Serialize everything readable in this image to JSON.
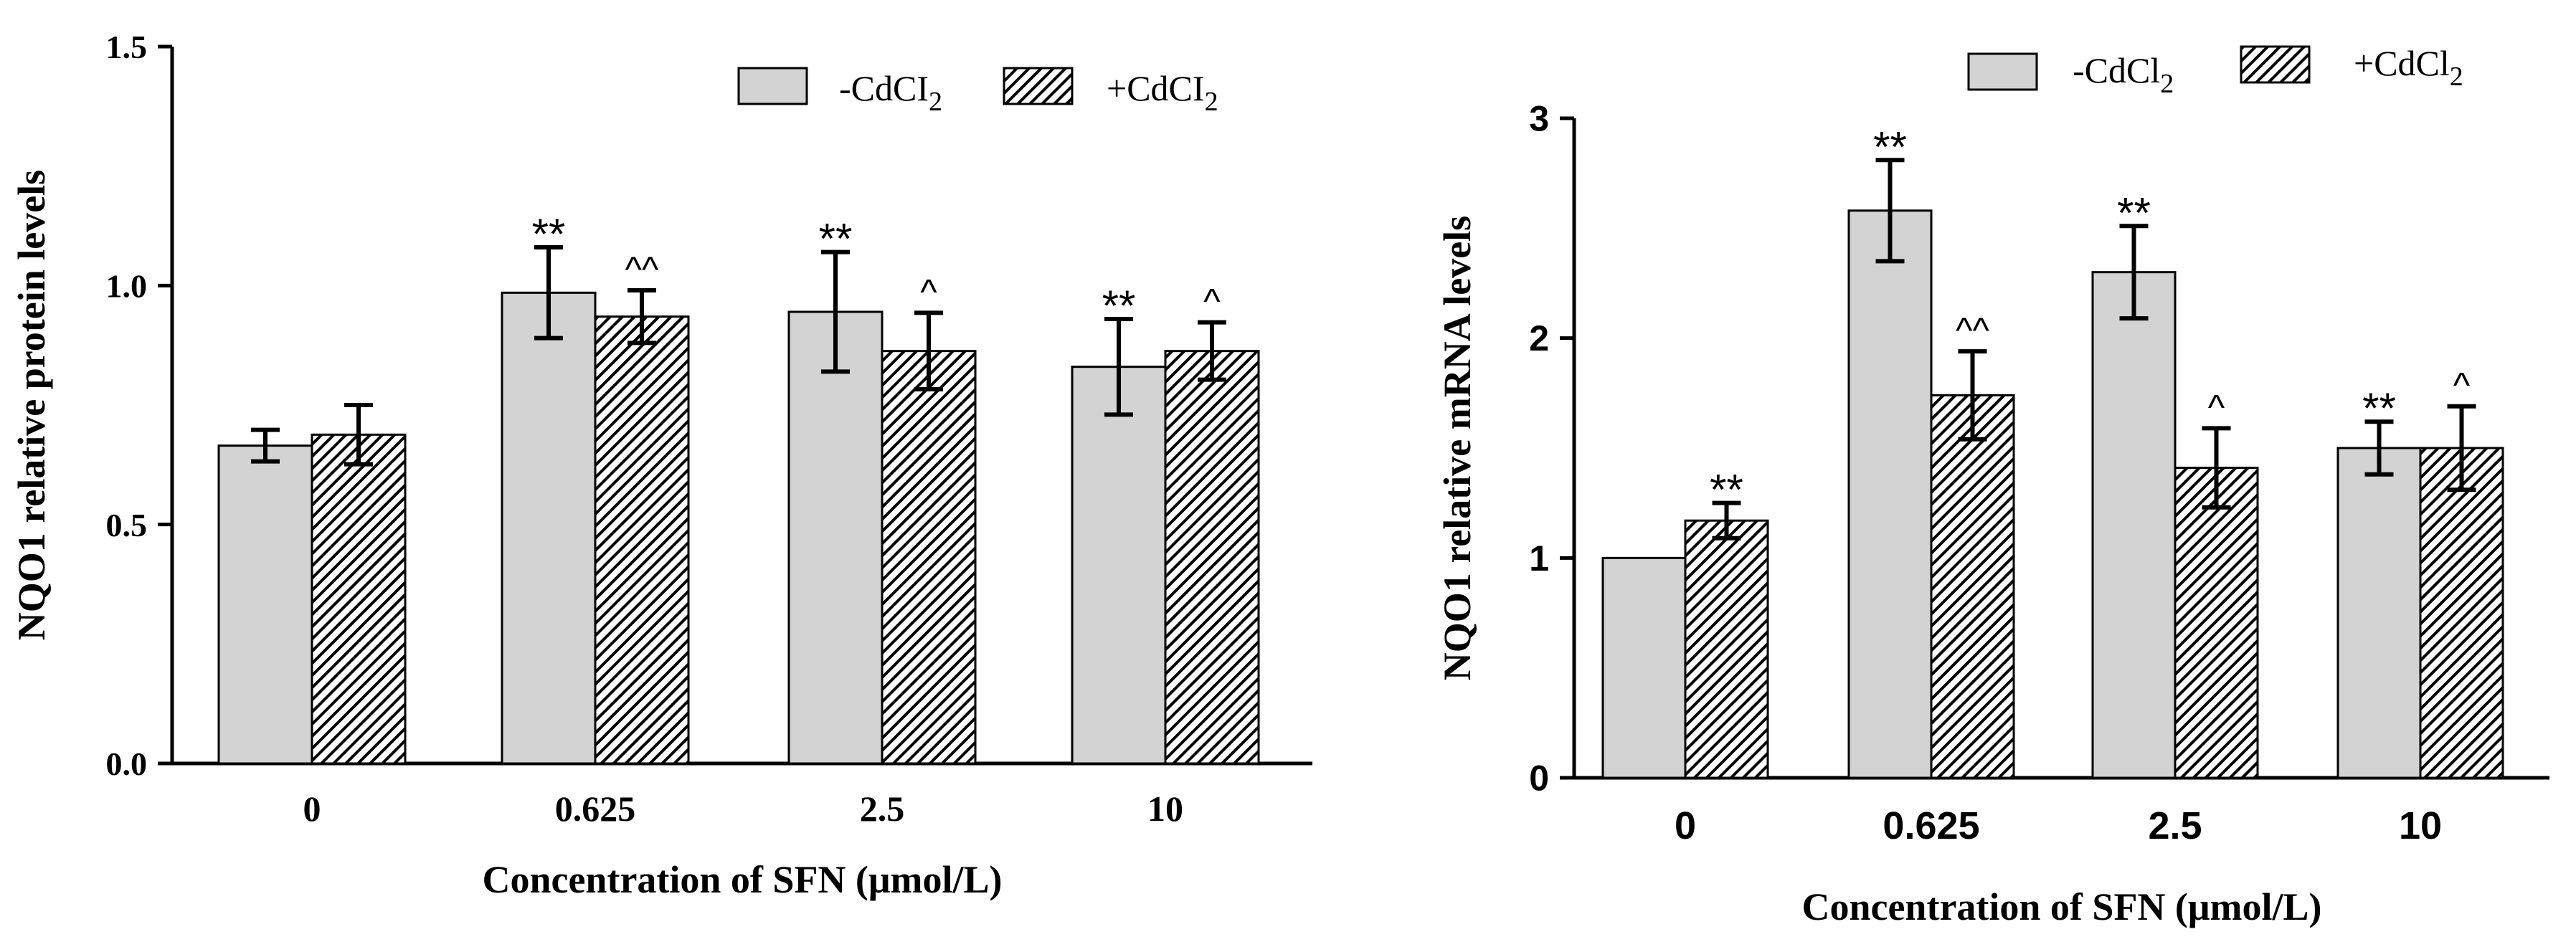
{
  "chart_data": [
    {
      "type": "bar",
      "panel": "left",
      "title": "",
      "xlabel": "Concentration of SFN (μmol/L)",
      "ylabel": "NQO1 relative protein levels",
      "categories": [
        "0",
        "0.625",
        "2.5",
        "10"
      ],
      "ylim": [
        0,
        1.5
      ],
      "yticks": [
        0.0,
        0.5,
        1.0,
        1.5
      ],
      "ytick_labels": [
        "0.0",
        "0.5",
        "1.0",
        "1.5"
      ],
      "grid": false,
      "legend_position": "top-right",
      "series": [
        {
          "name": "-CdCI2",
          "legend_base": "-CdCI",
          "legend_sub": "2",
          "fill": "solid-gray",
          "values": [
            0.665,
            0.985,
            0.945,
            0.83
          ],
          "errors": [
            0.033,
            0.095,
            0.125,
            0.1
          ],
          "annotations": [
            "",
            "**",
            "**",
            "**"
          ]
        },
        {
          "name": "+CdCI2",
          "legend_base": "+CdCI",
          "legend_sub": "2",
          "fill": "hatched",
          "values": [
            0.688,
            0.935,
            0.863,
            0.863
          ],
          "errors": [
            0.062,
            0.055,
            0.08,
            0.06
          ],
          "annotations": [
            "",
            "^^",
            "^",
            "^"
          ]
        }
      ]
    },
    {
      "type": "bar",
      "panel": "right",
      "title": "",
      "xlabel": "Concentration of SFN (μmol/L)",
      "ylabel": "NQO1 relative mRNA levels",
      "categories": [
        "0",
        "0.625",
        "2.5",
        "10"
      ],
      "ylim": [
        0,
        3
      ],
      "yticks": [
        0,
        1,
        2,
        3
      ],
      "ytick_labels": [
        "0",
        "1",
        "2",
        "3"
      ],
      "grid": false,
      "legend_position": "top-right",
      "series": [
        {
          "name": "-CdCl2",
          "legend_base": "-CdCl",
          "legend_sub": "2",
          "fill": "solid-gray",
          "values": [
            1.0,
            2.58,
            2.3,
            1.5
          ],
          "errors": [
            0,
            0.23,
            0.21,
            0.12
          ],
          "annotations": [
            "",
            "**",
            "**",
            "**"
          ]
        },
        {
          "name": "+CdCl2",
          "legend_base": "+CdCl",
          "legend_sub": "2",
          "fill": "hatched",
          "values": [
            1.17,
            1.74,
            1.41,
            1.5
          ],
          "errors": [
            0.08,
            0.2,
            0.18,
            0.19
          ],
          "annotations": [
            "**",
            "^^",
            "^",
            "^"
          ]
        }
      ]
    }
  ],
  "colors": {
    "bar_fill": "#d3d3d3",
    "hatch_background": "#ffffff",
    "ink": "#000000"
  }
}
